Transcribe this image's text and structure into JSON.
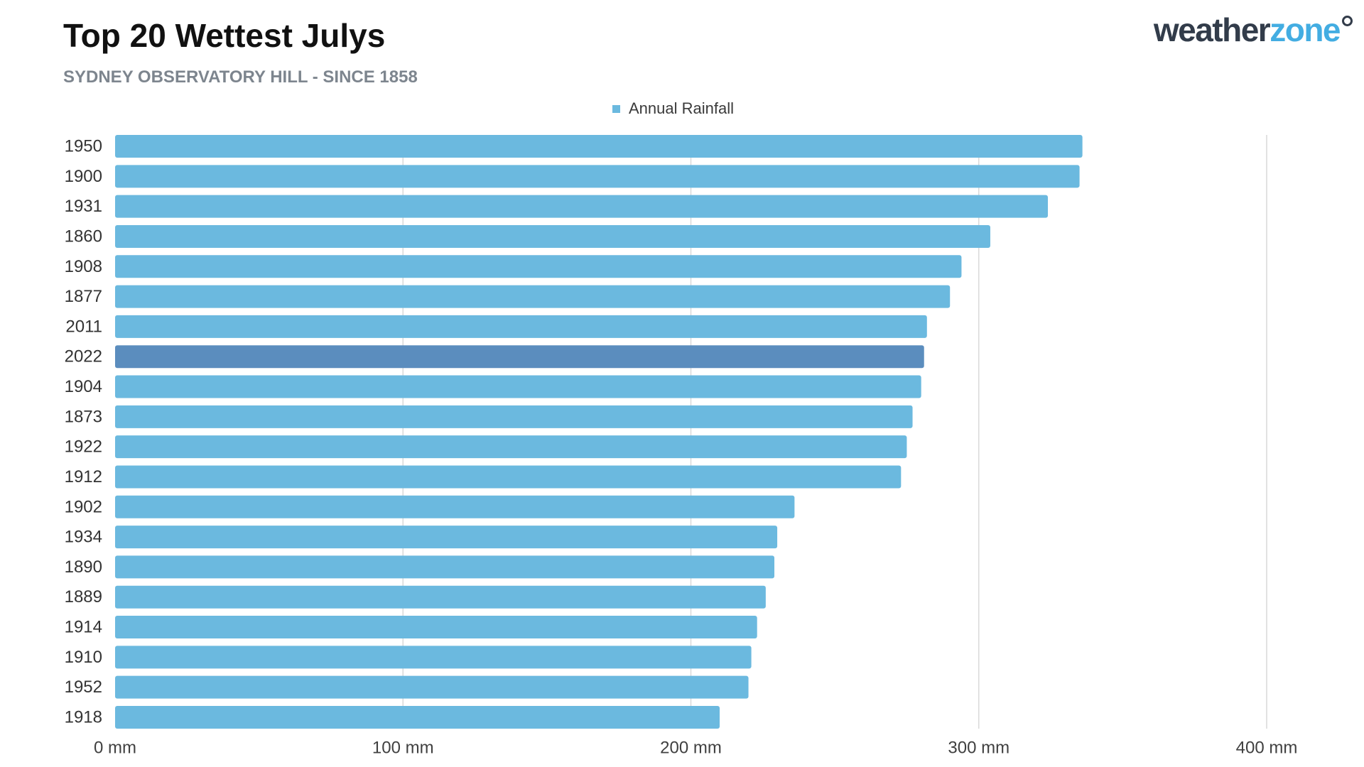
{
  "logo": {
    "main": "weather",
    "accent": "zone"
  },
  "chart_data": {
    "type": "bar",
    "orientation": "horizontal",
    "title": "Top 20 Wettest Julys",
    "subtitle": "SYDNEY OBSERVATORY HILL - SINCE 1858",
    "categories": [
      "1950",
      "1900",
      "1931",
      "1860",
      "1908",
      "1877",
      "2011",
      "2022",
      "1904",
      "1873",
      "1922",
      "1912",
      "1902",
      "1934",
      "1890",
      "1889",
      "1914",
      "1910",
      "1952",
      "1918"
    ],
    "series": [
      {
        "name": "Annual Rainfall",
        "values": [
          336,
          335,
          324,
          304,
          294,
          290,
          282,
          281,
          280,
          277,
          275,
          273,
          236,
          230,
          229,
          226,
          223,
          221,
          220,
          210
        ]
      }
    ],
    "xlim": [
      0,
      400
    ],
    "xticks": [
      0,
      100,
      200,
      300,
      400
    ],
    "xtick_labels": [
      "0 mm",
      "100 mm",
      "200 mm",
      "300 mm",
      "400 mm"
    ],
    "highlight": "2022",
    "grid": true,
    "legend": "top",
    "bar_color": "#6BB9DF",
    "highlight_color": "#5B8DBE",
    "grid_color": "#D9D9D9"
  }
}
